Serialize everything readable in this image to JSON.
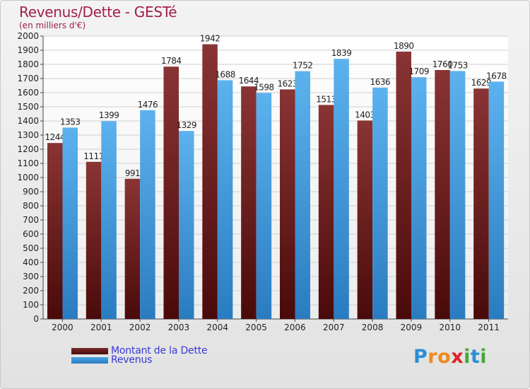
{
  "title": "Revenus/Dette - GESTé",
  "subtitle": "(en milliers d'€)",
  "brand": {
    "letters": [
      "P",
      "r",
      "o",
      "x",
      "i",
      "t",
      "i"
    ],
    "colors": [
      "#2b8fd6",
      "#f08a1c",
      "#f08a1c",
      "#e0222a",
      "#49a83a",
      "#2b8fd6",
      "#49a83a"
    ]
  },
  "legend": {
    "dette_label": "Montant de la Dette",
    "revenus_label": "Revenus"
  },
  "colors": {
    "dette": "#7a2a2a",
    "revenus": "#4aa3e6",
    "axis_text": "#222222",
    "grid": "#d0d0d0"
  },
  "chart_data": {
    "type": "bar",
    "categories": [
      "2000",
      "2001",
      "2002",
      "2003",
      "2004",
      "2005",
      "2006",
      "2007",
      "2008",
      "2009",
      "2010",
      "2011"
    ],
    "series": [
      {
        "name": "Montant de la Dette",
        "values": [
          1244,
          1111,
          991,
          1784,
          1942,
          1644,
          1623,
          1513,
          1403,
          1890,
          1760,
          1629
        ]
      },
      {
        "name": "Revenus",
        "values": [
          1353,
          1399,
          1476,
          1329,
          1688,
          1598,
          1752,
          1839,
          1636,
          1709,
          1753,
          1678
        ]
      }
    ],
    "yticks": [
      "0",
      "100",
      "200",
      "300",
      "400",
      "500",
      "600",
      "700",
      "800",
      "900",
      "1000",
      "1100",
      "1200",
      "1300",
      "1400",
      "1500",
      "1600",
      "1700",
      "1800",
      "1900",
      "2000"
    ],
    "ylim": [
      0,
      2000
    ],
    "grid": true,
    "legend_position": "bottom-left"
  }
}
